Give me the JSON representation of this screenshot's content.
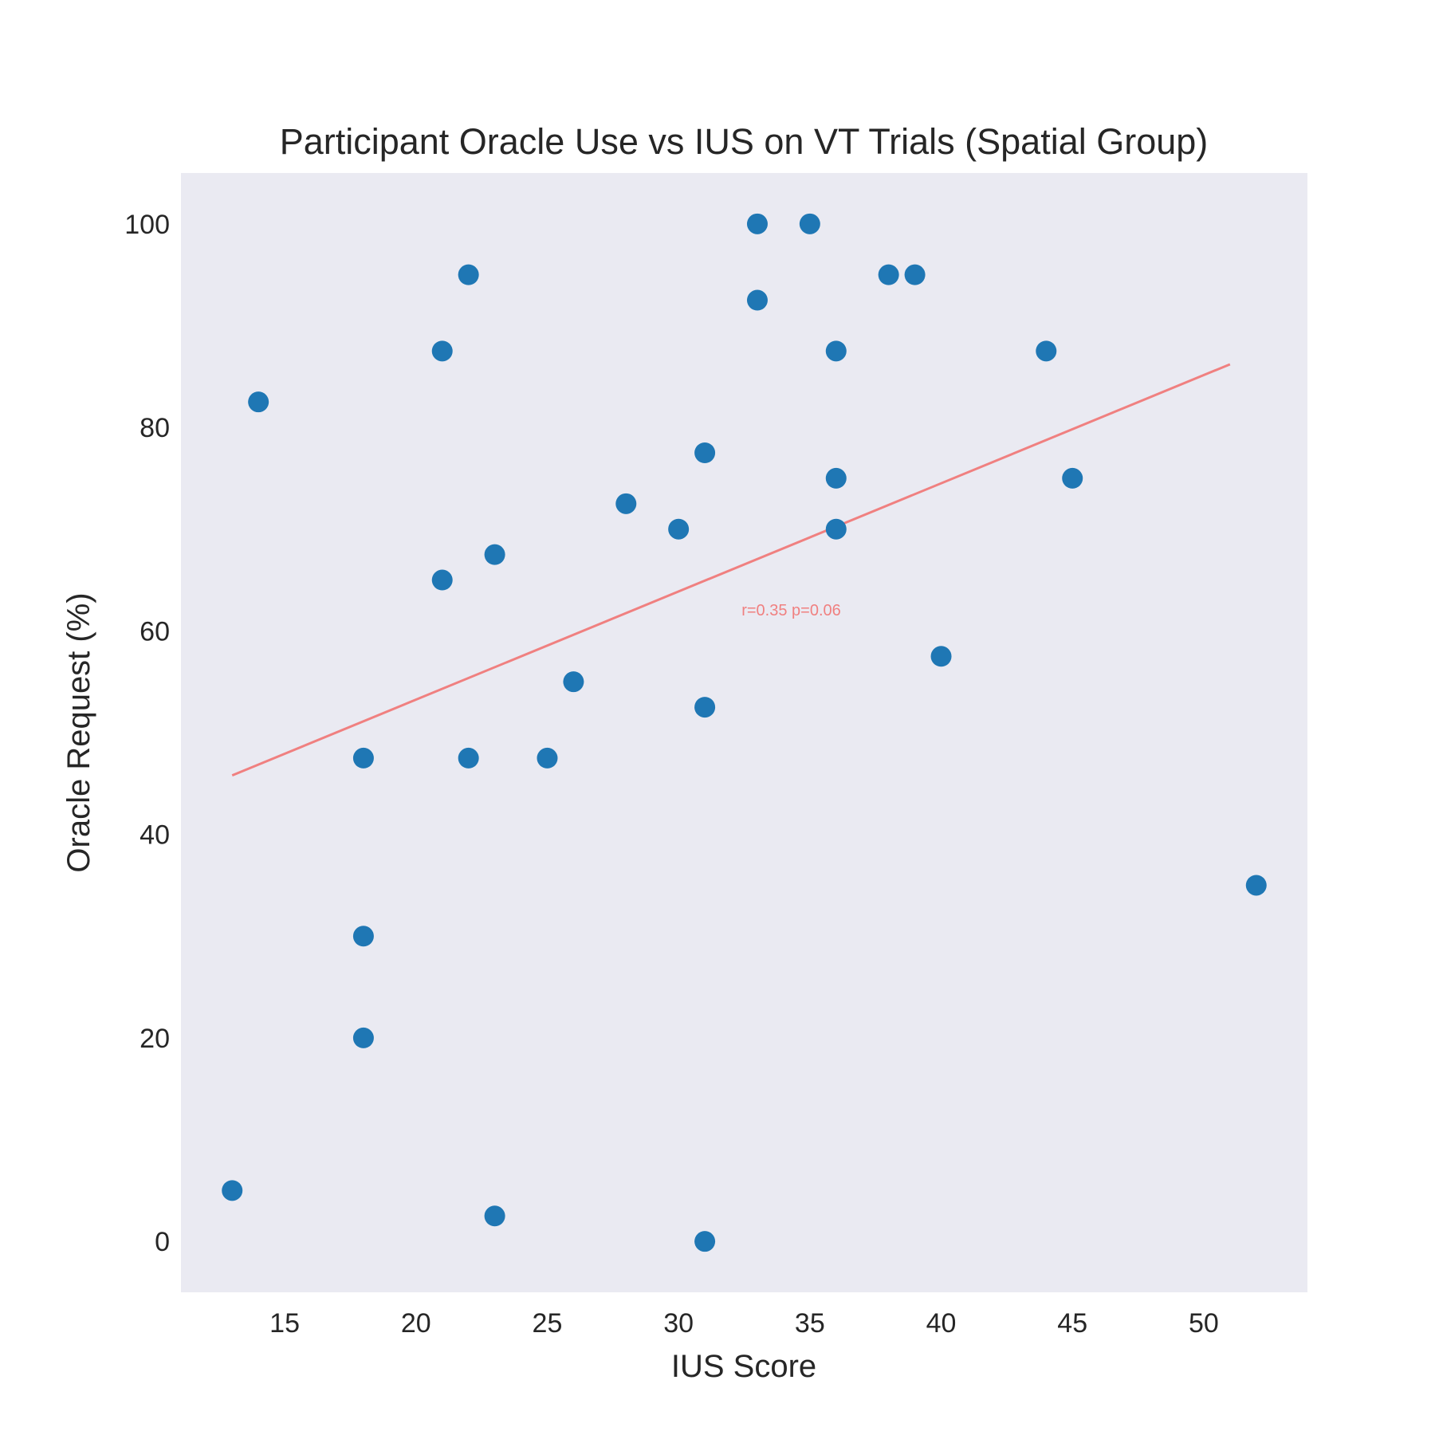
{
  "chart_data": {
    "type": "scatter",
    "title": "Participant Oracle Use vs IUS on VT Trials (Spatial Group)",
    "xlabel": "IUS Score",
    "ylabel": "Oracle Request (%)",
    "xlim": [
      11.05,
      53.95
    ],
    "ylim": [
      -5,
      105
    ],
    "xticks": [
      15,
      20,
      25,
      30,
      35,
      40,
      45,
      50
    ],
    "yticks": [
      0,
      20,
      40,
      60,
      80,
      100
    ],
    "grid": false,
    "point_color": "#1f77b4",
    "background_color": "#eaeaf2",
    "points": [
      {
        "x": 13,
        "y": 5
      },
      {
        "x": 14,
        "y": 82.5
      },
      {
        "x": 18,
        "y": 47.5
      },
      {
        "x": 18,
        "y": 30
      },
      {
        "x": 18,
        "y": 20
      },
      {
        "x": 21,
        "y": 87.5
      },
      {
        "x": 21,
        "y": 65
      },
      {
        "x": 22,
        "y": 95
      },
      {
        "x": 22,
        "y": 47.5
      },
      {
        "x": 23,
        "y": 67.5
      },
      {
        "x": 23,
        "y": 2.5
      },
      {
        "x": 25,
        "y": 47.5
      },
      {
        "x": 26,
        "y": 55
      },
      {
        "x": 28,
        "y": 72.5
      },
      {
        "x": 30,
        "y": 70
      },
      {
        "x": 31,
        "y": 77.5
      },
      {
        "x": 31,
        "y": 52.5
      },
      {
        "x": 31,
        "y": 0
      },
      {
        "x": 33,
        "y": 100
      },
      {
        "x": 33,
        "y": 92.5
      },
      {
        "x": 35,
        "y": 100
      },
      {
        "x": 36,
        "y": 87.5
      },
      {
        "x": 36,
        "y": 75
      },
      {
        "x": 36,
        "y": 70
      },
      {
        "x": 38,
        "y": 95
      },
      {
        "x": 39,
        "y": 95
      },
      {
        "x": 40,
        "y": 57.5
      },
      {
        "x": 44,
        "y": 87.5
      },
      {
        "x": 45,
        "y": 75
      },
      {
        "x": 52,
        "y": 35
      }
    ],
    "trend_line": {
      "color": "#f08080",
      "x": [
        13,
        51
      ],
      "y": [
        45.8,
        86.2
      ]
    },
    "annotation": {
      "text": "r=0.35 p=0.06",
      "x": 32.4,
      "y": 61.5
    }
  }
}
